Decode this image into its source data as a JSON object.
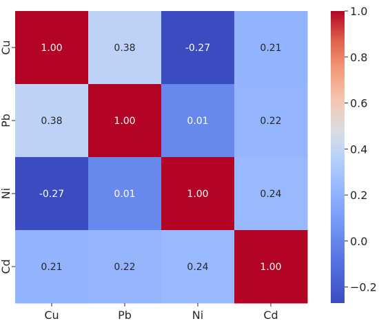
{
  "chart_data": {
    "type": "heatmap",
    "title": "",
    "xlabel": "",
    "ylabel": "",
    "x_categories": [
      "Cu",
      "Pb",
      "Ni",
      "Cd"
    ],
    "y_categories": [
      "Cu",
      "Pb",
      "Ni",
      "Cd"
    ],
    "values": [
      [
        1.0,
        0.38,
        -0.27,
        0.21
      ],
      [
        0.38,
        1.0,
        0.01,
        0.22
      ],
      [
        -0.27,
        0.01,
        1.0,
        0.24
      ],
      [
        0.21,
        0.22,
        0.24,
        1.0
      ]
    ],
    "value_labels": [
      [
        "1.00",
        "0.38",
        "-0.27",
        "0.21"
      ],
      [
        "0.38",
        "1.00",
        "0.01",
        "0.22"
      ],
      [
        "-0.27",
        "0.01",
        "1.00",
        "0.24"
      ],
      [
        "0.21",
        "0.22",
        "0.24",
        "1.00"
      ]
    ],
    "colorbar": {
      "colormap": "coolwarm",
      "range": [
        -0.27,
        1.0
      ],
      "ticks": [
        1.0,
        0.8,
        0.6,
        0.4,
        0.2,
        0.0,
        -0.2
      ],
      "tick_labels": [
        "1.0",
        "0.8",
        "0.6",
        "0.4",
        "0.2",
        "0.0",
        "−0.2"
      ],
      "position": "right"
    },
    "grid": false
  }
}
